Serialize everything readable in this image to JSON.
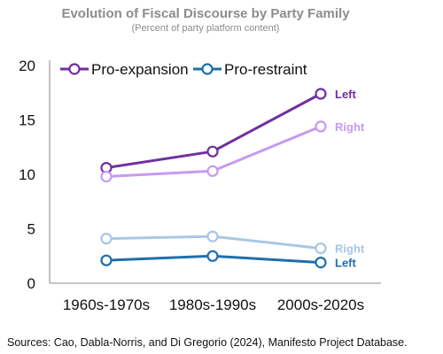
{
  "chart_data": {
    "type": "line",
    "title": "Evolution of Fiscal Discourse by Party Family",
    "subtitle": "(Percent of party platform content)",
    "categories": [
      "1960s-1970s",
      "1980s-1990s",
      "2000s-2020s"
    ],
    "ylim": [
      0,
      20
    ],
    "yticks": [
      "0",
      "5",
      "10",
      "15",
      "20"
    ],
    "grid": false,
    "legend": {
      "placement": "top-left",
      "entries": [
        {
          "name": "Pro-expansion",
          "color": "#7030a0"
        },
        {
          "name": "Pro-restraint",
          "color": "#1f6fab"
        }
      ]
    },
    "series": [
      {
        "group": "Pro-expansion",
        "label": "Left",
        "color": "#7030a0",
        "values": [
          10.6,
          12.1,
          17.4
        ]
      },
      {
        "group": "Pro-expansion",
        "label": "Right",
        "color": "#c79af0",
        "values": [
          9.8,
          10.3,
          14.4
        ]
      },
      {
        "group": "Pro-restraint",
        "label": "Right",
        "color": "#a7c7e7",
        "values": [
          4.1,
          4.3,
          3.2
        ]
      },
      {
        "group": "Pro-restraint",
        "label": "Left",
        "color": "#1f6fab",
        "values": [
          2.1,
          2.5,
          1.9
        ]
      }
    ],
    "source": "Sources: Cao, Dabla-Norris, and Di Gregorio (2024), Manifesto Project Database."
  }
}
